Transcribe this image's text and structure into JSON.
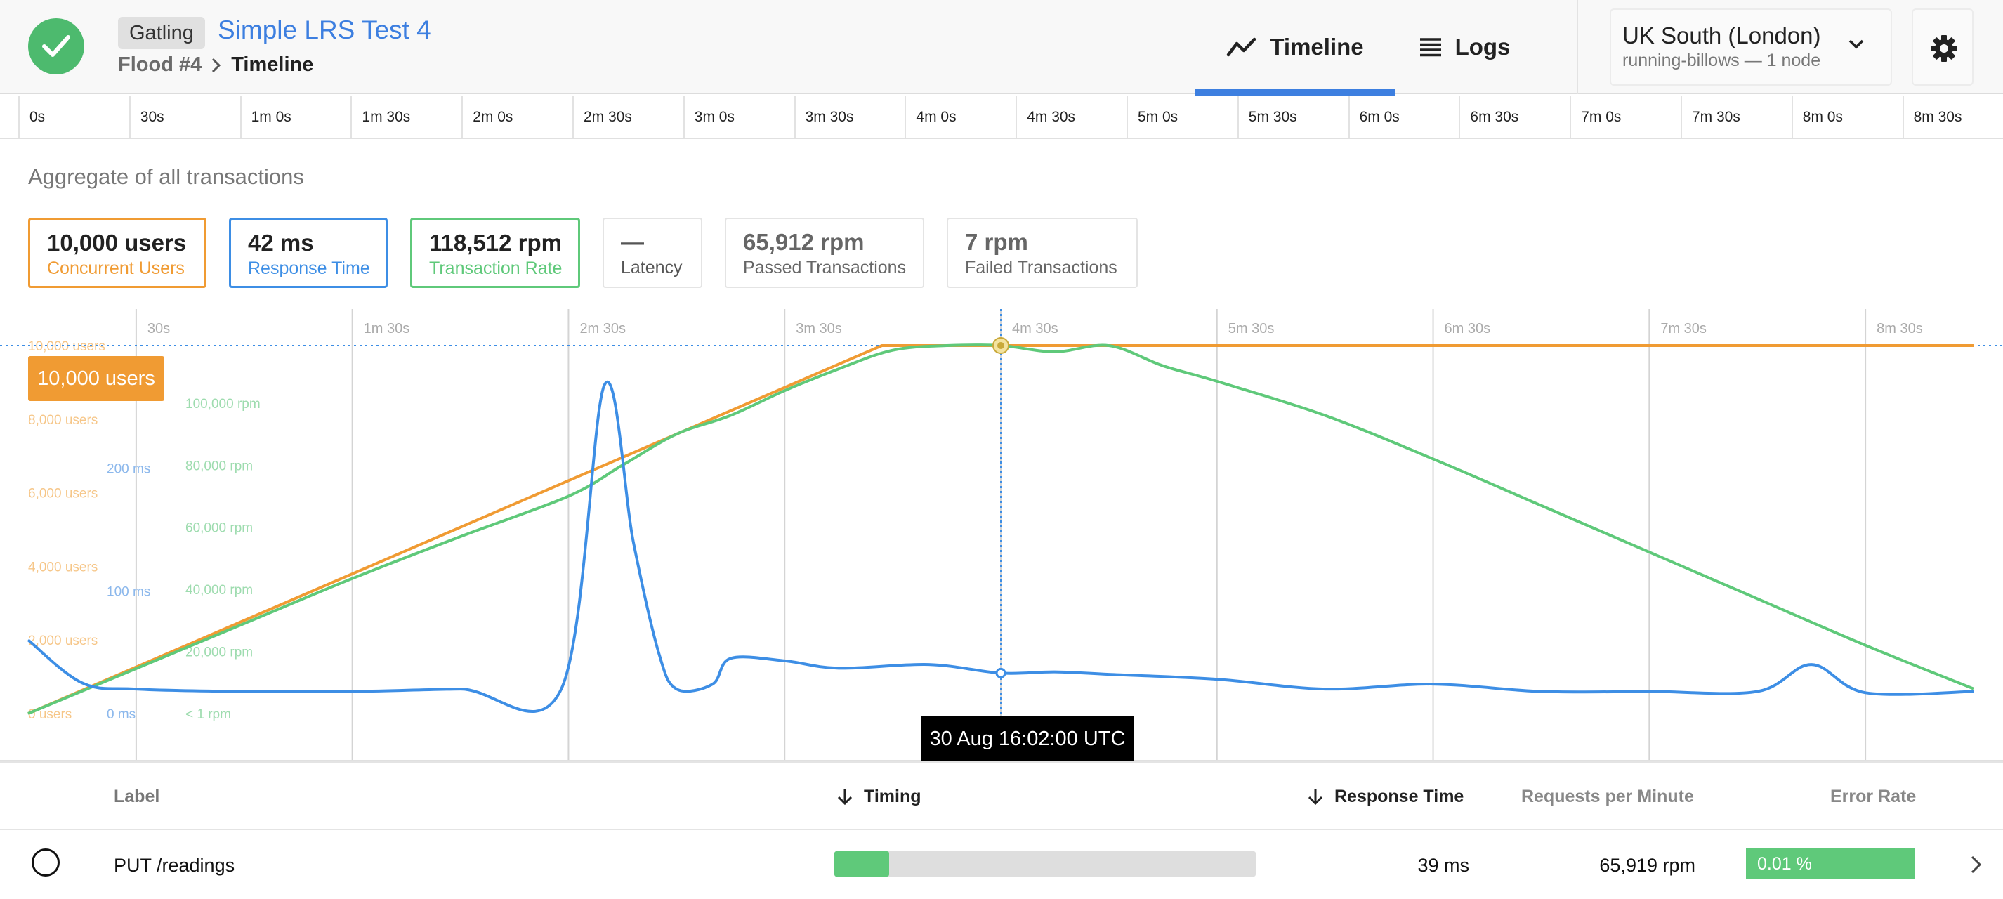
{
  "header": {
    "tool_badge": "Gatling",
    "test_title": "Simple LRS Test 4",
    "breadcrumb": {
      "flood": "Flood #4",
      "current": "Timeline"
    },
    "tabs": [
      {
        "label": "Timeline",
        "icon": "timeline-icon",
        "active": true
      },
      {
        "label": "Logs",
        "icon": "list-icon",
        "active": false
      }
    ],
    "region": {
      "name": "UK South (London)",
      "sub": "running-billows — 1 node"
    },
    "colors": {
      "status_ok": "#4dba6e",
      "accent": "#3d7fe0"
    }
  },
  "time_ruler": [
    "0s",
    "30s",
    "1m 0s",
    "1m 30s",
    "2m 0s",
    "2m 30s",
    "3m 0s",
    "3m 30s",
    "4m 0s",
    "4m 30s",
    "5m 0s",
    "5m 30s",
    "6m 0s",
    "6m 30s",
    "7m 0s",
    "7m 30s",
    "8m 0s",
    "8m 30s"
  ],
  "summary": {
    "title": "Aggregate of all transactions",
    "metrics": {
      "users": {
        "value": "10,000 users",
        "label": "Concurrent Users",
        "color": "#f09b33"
      },
      "response": {
        "value": "42 ms",
        "label": "Response Time",
        "color": "#3d8ee5"
      },
      "rate": {
        "value": "118,512 rpm",
        "label": "Transaction Rate",
        "color": "#5fc97a"
      },
      "latency": {
        "value": "—",
        "label": "Latency"
      },
      "passed": {
        "value": "65,912 rpm",
        "label": "Passed Transactions"
      },
      "failed": {
        "value": "7 rpm",
        "label": "Failed Transactions"
      }
    }
  },
  "chart_data": {
    "type": "line",
    "x_tick_labels": [
      "30s",
      "1m 30s",
      "2m 30s",
      "3m 30s",
      "4m 30s",
      "5m 30s",
      "6m 30s",
      "7m 30s",
      "8m 30s"
    ],
    "x_unit": "seconds",
    "xlim": [
      0,
      540
    ],
    "y_axes": {
      "users": {
        "tick_labels": [
          "0 users",
          "2,000 users",
          "4,000 users",
          "6,000 users",
          "8,000 users",
          "10,000 users"
        ],
        "ylim": [
          0,
          10000
        ]
      },
      "response": {
        "tick_labels": [
          "0 ms",
          "100 ms",
          "200 ms"
        ],
        "ylim": [
          0,
          300
        ]
      },
      "rate": {
        "tick_labels": [
          "< 1 rpm",
          "20,000 rpm",
          "40,000 rpm",
          "60,000 rpm",
          "80,000 rpm",
          "100,000 rpm"
        ],
        "ylim": [
          0,
          118512
        ]
      }
    },
    "series": [
      {
        "name": "Concurrent Users",
        "axis": "users",
        "color": "#f09b33",
        "x": [
          0,
          237,
          540
        ],
        "y": [
          0,
          10000,
          10000
        ]
      },
      {
        "name": "Transaction Rate",
        "axis": "rate",
        "color": "#5fc97a",
        "x": [
          0,
          30,
          60,
          90,
          120,
          150,
          165,
          180,
          195,
          210,
          225,
          240,
          255,
          270,
          285,
          300,
          315,
          330,
          360,
          390,
          420,
          450,
          480,
          510,
          540
        ],
        "y": [
          0,
          14500,
          29000,
          43500,
          57000,
          70000,
          80000,
          90000,
          96000,
          104000,
          111000,
          117000,
          118500,
          118500,
          116500,
          118500,
          112000,
          107000,
          96000,
          82000,
          67000,
          52000,
          37000,
          22000,
          8000
        ]
      },
      {
        "name": "Response Time",
        "axis": "response",
        "color": "#3d8ee5",
        "x": [
          0,
          15,
          30,
          60,
          90,
          120,
          148,
          160,
          168,
          175,
          180,
          190,
          195,
          210,
          225,
          250,
          270,
          285,
          300,
          330,
          360,
          390,
          420,
          450,
          480,
          495,
          510,
          540
        ],
        "y": [
          60,
          25,
          20,
          18,
          18,
          20,
          20,
          268,
          140,
          50,
          20,
          24,
          45,
          43,
          37,
          40,
          33,
          34,
          32,
          28,
          20,
          24,
          18,
          18,
          18,
          40,
          17,
          18
        ]
      }
    ],
    "crosshair": {
      "x": 270,
      "label": "30 Aug 16:02:00 UTC"
    },
    "grid": true,
    "users_flag": "10,000 users"
  },
  "table": {
    "headers": {
      "label": "Label",
      "timing": "Timing",
      "response": "Response Time",
      "rpm": "Requests per Minute",
      "error": "Error Rate"
    },
    "rows": [
      {
        "label": "PUT /readings",
        "timing_fraction": 0.13,
        "response": "39 ms",
        "rpm": "65,919 rpm",
        "error": "0.01 %"
      }
    ]
  }
}
